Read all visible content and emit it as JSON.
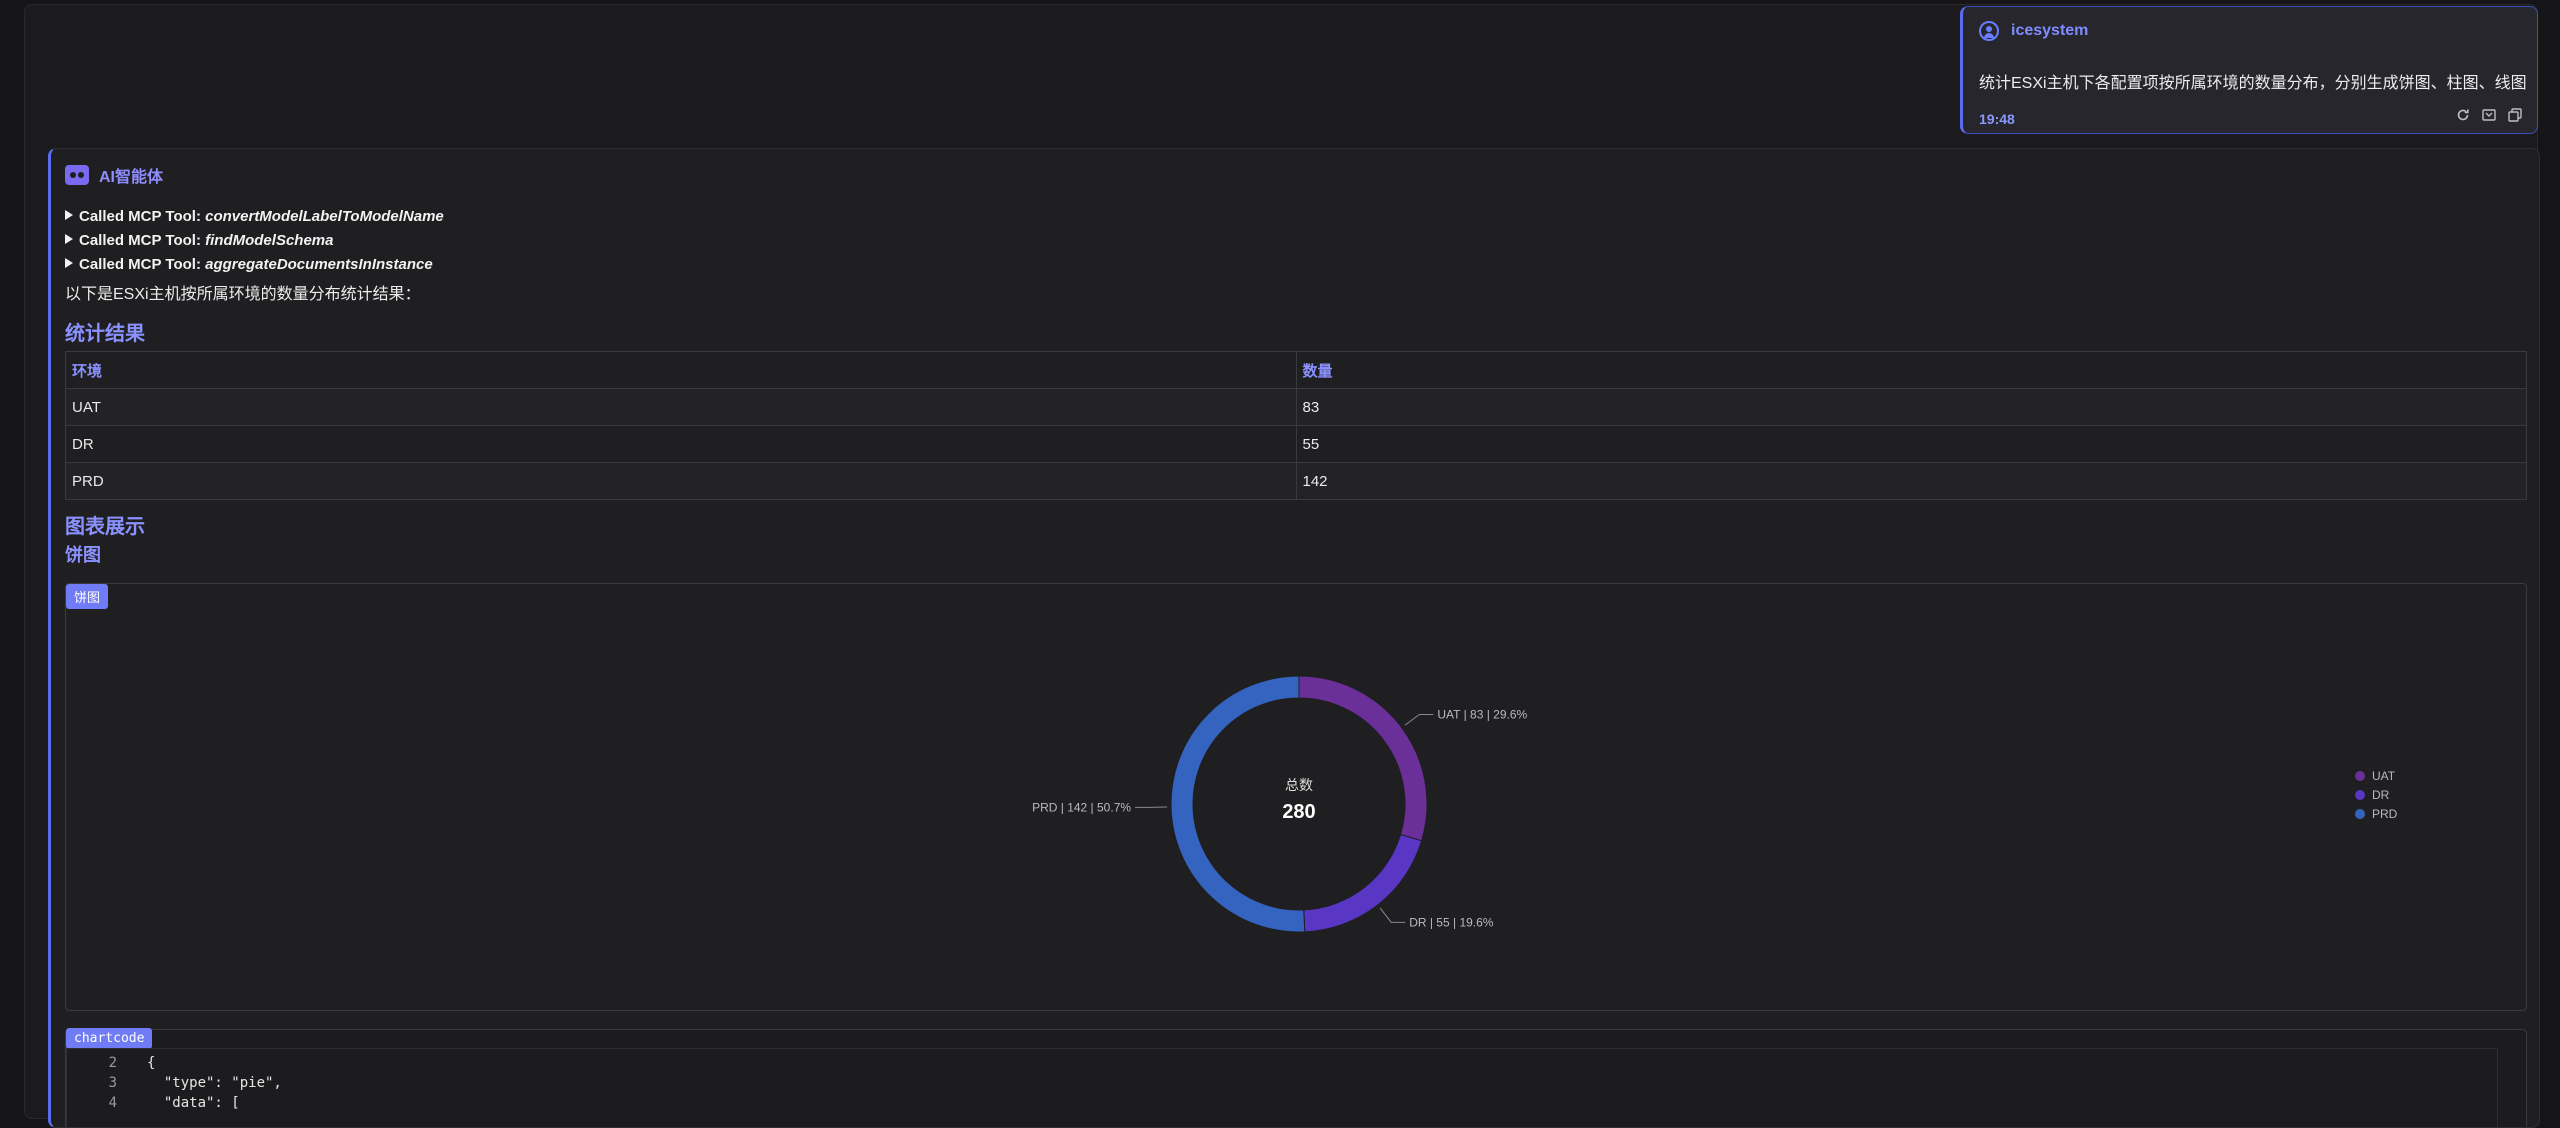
{
  "user_card": {
    "name": "icesystem",
    "message": "统计ESXi主机下各配置项按所属环境的数量分布，分别生成饼图、柱图、线图",
    "time": "19:48"
  },
  "ai": {
    "title": "AI智能体",
    "tool_prefix": "Called MCP Tool:",
    "tools": [
      "convertModelLabelToModelName",
      "findModelSchema",
      "aggregateDocumentsInInstance"
    ],
    "intro": "以下是ESXi主机按所属环境的数量分布统计结果：",
    "section_stats": "统计结果",
    "table": {
      "headers": [
        "环境",
        "数量"
      ],
      "rows": [
        [
          "UAT",
          "83"
        ],
        [
          "DR",
          "55"
        ],
        [
          "PRD",
          "142"
        ]
      ]
    },
    "section_charts": "图表展示",
    "sub_pie": "饼图",
    "pie_tag": "饼图",
    "code_tag": "chartcode",
    "code_lines": [
      {
        "n": "2",
        "text": "{"
      },
      {
        "n": "3",
        "text": "  \"type\": \"pie\","
      },
      {
        "n": "4",
        "text": "  \"data\": ["
      }
    ]
  },
  "chart_data": {
    "type": "pie",
    "center_label": "总数",
    "total": "280",
    "slices": [
      {
        "name": "UAT",
        "value": 83,
        "label": "UAT | 83 | 29.6%",
        "color": "#6b2f99"
      },
      {
        "name": "DR",
        "value": 55,
        "label": "DR | 55 | 19.6%",
        "color": "#5a36c4"
      },
      {
        "name": "PRD",
        "value": 142,
        "label": "PRD | 142 | 50.7%",
        "color": "#3464bf"
      }
    ],
    "legend": [
      "UAT",
      "DR",
      "PRD"
    ],
    "legend_position": "right"
  },
  "colors": {
    "accent": "#6f7cf5",
    "heading": "#8b92ff"
  }
}
